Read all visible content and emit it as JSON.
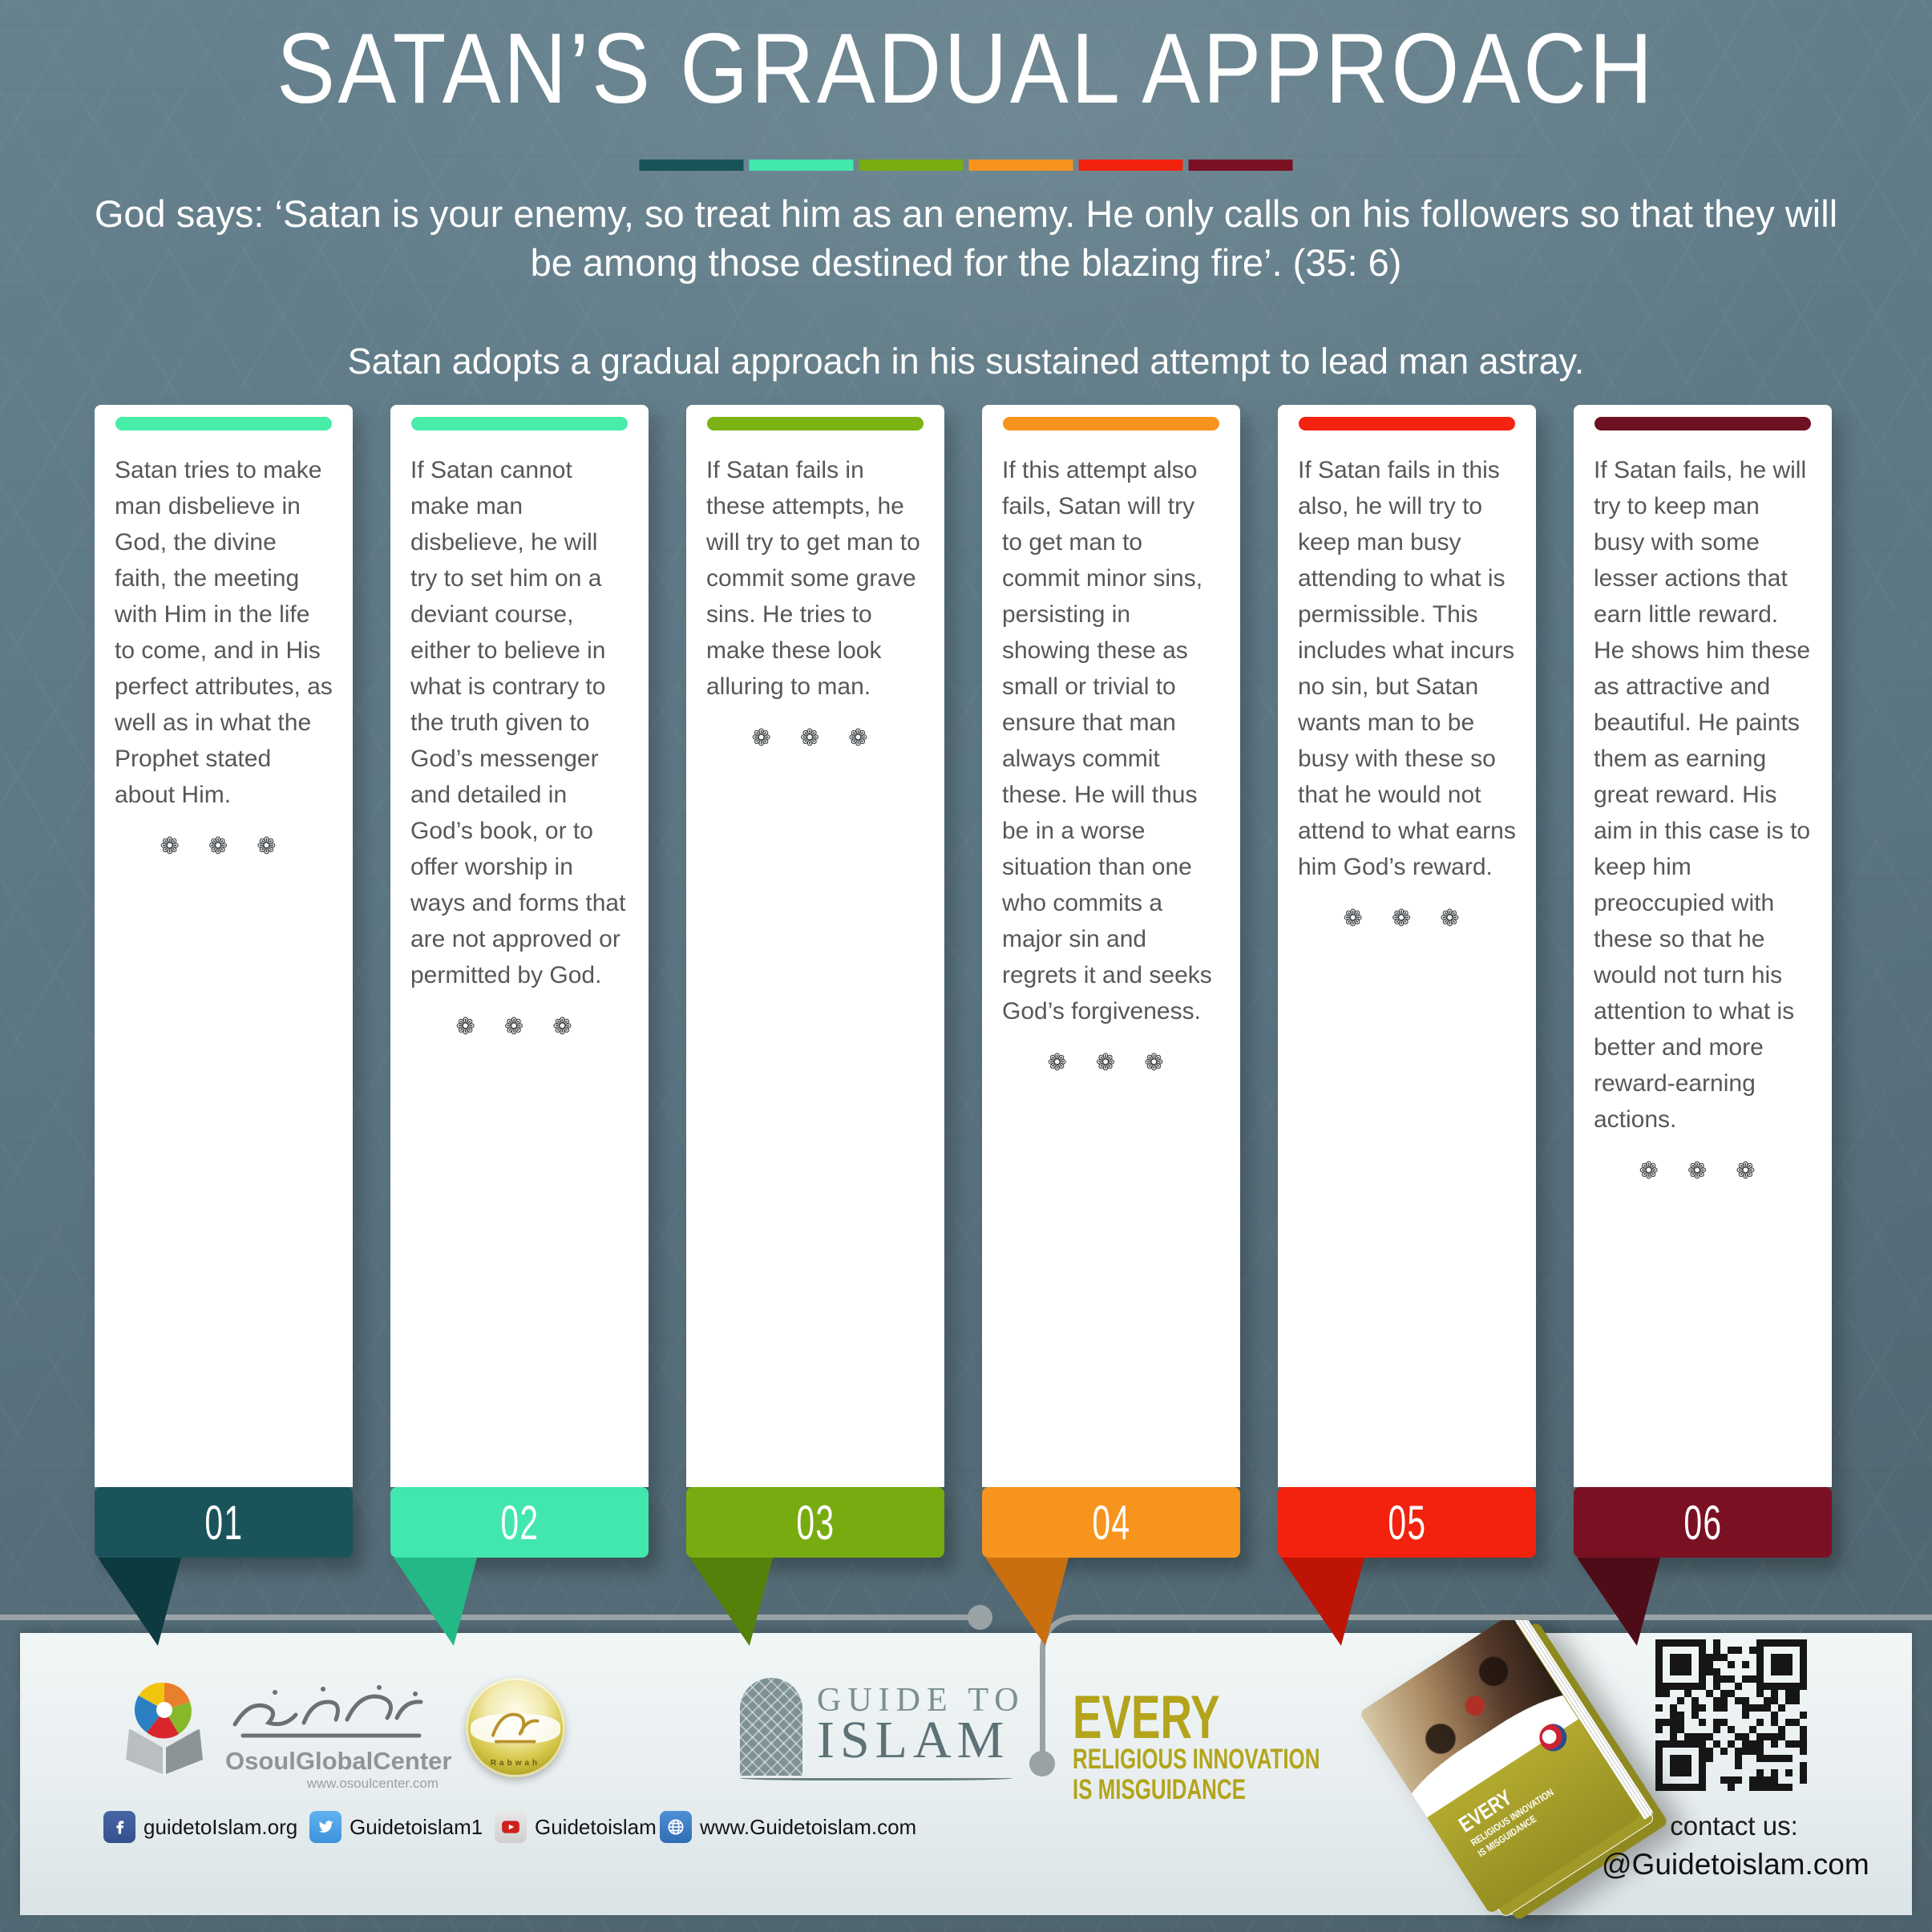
{
  "header": {
    "title": "SATAN’S GRADUAL APPROACH",
    "quote": "God says: ‘Satan is your enemy, so treat him as an enemy. He only calls on his followers so that they will be among those destined for the blazing fire’. (35: 6)",
    "subtitle": "Satan adopts a gradual approach in his sustained attempt to lead man astray.",
    "legend_colors": [
      "#185358",
      "#43e8ae",
      "#79ac11",
      "#f7941e",
      "#f2230e",
      "#7a1123"
    ]
  },
  "ornament": "❁ ❁ ❁",
  "steps": [
    {
      "number": "01",
      "text": "Satan tries to make man disbelieve in God, the divine faith, the meeting with Him in the life to come, and in His perfect attributes, as well as in what the Prophet stated about Him.",
      "bar_color": "#47eda9",
      "ribbon_color": "#1a545a",
      "fold_color": "#0c3a3f"
    },
    {
      "number": "02",
      "text": "If Satan cannot make man disbelieve, he will try to set him on a deviant course, either to believe in what is contrary to the truth given to God’s messenger and detailed in God’s book, or to offer worship in ways and forms that are not approved or permitted by God.",
      "bar_color": "#47eda9",
      "ribbon_color": "#41e7ad",
      "fold_color": "#23b886"
    },
    {
      "number": "03",
      "text": "If Satan fails in these attempts, he will try to get man to commit some grave sins. He tries to make these look alluring to man.",
      "bar_color": "#7ab312",
      "ribbon_color": "#78ab10",
      "fold_color": "#55800a"
    },
    {
      "number": "04",
      "text": "If this attempt also fails, Satan will try to get man to commit minor sins, persisting in showing these as small or trivial to ensure that man always commit these. He will thus be in a worse situation than one who commits a major sin and regrets it and seeks God’s forgiveness.",
      "bar_color": "#f7941e",
      "ribbon_color": "#f7941e",
      "fold_color": "#c96f10"
    },
    {
      "number": "05",
      "text": "If Satan fails in this also, he will try to keep man busy attending to what is permissible. This includes what incurs no sin, but Satan wants man to be busy with these so that he would not attend to what earns him God’s reward.",
      "bar_color": "#f3230f",
      "ribbon_color": "#f2220e",
      "fold_color": "#bd1405"
    },
    {
      "number": "06",
      "text": "If Satan fails, he will try to keep man busy with some lesser actions that earn little reward. He shows him these as attractive and beautiful. He paints them as earning great reward. His aim in this case is to keep him preoccupied with these so that he would not turn his attention to what is better and more reward-earning actions.",
      "bar_color": "#6e1122",
      "ribbon_color": "#7a1123",
      "fold_color": "#4e0c18"
    }
  ],
  "footer": {
    "osoul": {
      "brand": "OsoulGlobalCenter",
      "url": "www.osoulcenter.com"
    },
    "rabwah_label": "Rabwah",
    "guide_to_islam": {
      "line1": "GUIDE TO",
      "line2": "ISLAM"
    },
    "social": [
      {
        "network": "facebook",
        "label": "guidetoIslam.org"
      },
      {
        "network": "twitter",
        "label": "Guidetoislam1"
      },
      {
        "network": "youtube",
        "label": "Guidetoislam"
      },
      {
        "network": "website",
        "label": "www.Guidetoislam.com"
      }
    ],
    "campaign": {
      "line1": "EVERY",
      "line2": "RELIGIOUS INNOVATION",
      "line3": "IS MISGUIDANCE",
      "color": "#b3a41c"
    },
    "book_cover": {
      "line1": "EVERY",
      "line2": "RELIGIOUS INNOVATION",
      "line3": "IS MISGUIDANCE"
    },
    "contact": {
      "label": "contact us:",
      "handle": "@Guidetoislam.com"
    }
  }
}
